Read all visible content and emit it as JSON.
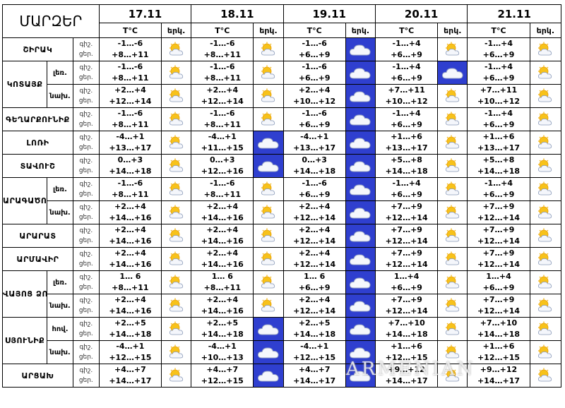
{
  "header": {
    "title": "ՄԱՐԶԵՐ",
    "dates": [
      "17.11",
      "18.11",
      "19.11",
      "20.11",
      "21.11"
    ],
    "temp_label": "T°C",
    "sky_label": "երկ."
  },
  "rows": [
    {
      "region": "ՇԻՐԱԿ",
      "zone": "",
      "lbl": [
        "գիշ.",
        "ցեր."
      ],
      "days": [
        {
          "t": [
            "-1…-6",
            "+8…+11"
          ],
          "sky": "sun-cloud"
        },
        {
          "t": [
            "-1…-6",
            "+8…+11"
          ],
          "sky": "sun-cloud"
        },
        {
          "t": [
            "-1…-6",
            "+6…+9"
          ],
          "sky": "cloud"
        },
        {
          "t": [
            "-1…+4",
            "+6…+9"
          ],
          "sky": "sun-cloud"
        },
        {
          "t": [
            "-1…+4",
            "+6…+9"
          ],
          "sky": "sun-cloud"
        }
      ]
    },
    {
      "region": "ԿՈՏԱՅՔ",
      "zone": "լեռ.",
      "lbl": [
        "գիշ.",
        "ցեր."
      ],
      "days": [
        {
          "t": [
            "-1…-6",
            "+8…+11"
          ],
          "sky": "sun-cloud"
        },
        {
          "t": [
            "-1…-6",
            "+8…+11"
          ],
          "sky": "sun-cloud"
        },
        {
          "t": [
            "-1…-6",
            "+6…+9"
          ],
          "sky": "cloud"
        },
        {
          "t": [
            "-1…+4",
            "+6…+9"
          ],
          "sky": "cloud"
        },
        {
          "t": [
            "-1…+4",
            "+6…+9"
          ],
          "sky": "sun-cloud"
        }
      ]
    },
    {
      "region": "",
      "zone": "նախ.",
      "lbl": [
        "գիշ.",
        "ցեր."
      ],
      "days": [
        {
          "t": [
            "+2…+4",
            "+12…+14"
          ],
          "sky": "sun-cloud"
        },
        {
          "t": [
            "+2…+4",
            "+12…+14"
          ],
          "sky": "sun-cloud"
        },
        {
          "t": [
            "+2…+4",
            "+10…+12"
          ],
          "sky": "cloud"
        },
        {
          "t": [
            "+7…+11",
            "+10…+12"
          ],
          "sky": "sun-cloud"
        },
        {
          "t": [
            "+7…+11",
            "+10…+12"
          ],
          "sky": "sun-cloud"
        }
      ]
    },
    {
      "region": "ԳԵՂԱՐՔՈՒՆԻՔ",
      "zone": "",
      "lbl": [
        "գիշ.",
        "ցեր."
      ],
      "days": [
        {
          "t": [
            "-1…-6",
            "+8…+11"
          ],
          "sky": "sun-cloud"
        },
        {
          "t": [
            "-1…-6",
            "+8…+11"
          ],
          "sky": "sun-cloud"
        },
        {
          "t": [
            "-1…-6",
            "+6…+9"
          ],
          "sky": "cloud"
        },
        {
          "t": [
            "-1…+4",
            "+6…+9"
          ],
          "sky": "sun-cloud"
        },
        {
          "t": [
            "-1…+4",
            "+6…+9"
          ],
          "sky": "sun-cloud"
        }
      ]
    },
    {
      "region": "ԼՈՌԻ",
      "zone": "",
      "lbl": [
        "գիշ.",
        "ցեր."
      ],
      "days": [
        {
          "t": [
            "-4…+1",
            "+13…+17"
          ],
          "sky": "sun-cloud"
        },
        {
          "t": [
            "-4…+1",
            "+11…+15"
          ],
          "sky": "cloud"
        },
        {
          "t": [
            "-4…+1",
            "+13…+17"
          ],
          "sky": "cloud"
        },
        {
          "t": [
            "+1…+6",
            "+13…+17"
          ],
          "sky": "sun-cloud"
        },
        {
          "t": [
            "+1…+6",
            "+13…+17"
          ],
          "sky": "sun-cloud"
        }
      ]
    },
    {
      "region": "ՏԱՎՈՒՇ",
      "zone": "",
      "lbl": [
        "գիշ.",
        "ցեր."
      ],
      "days": [
        {
          "t": [
            "0…+3",
            "+14…+18"
          ],
          "sky": "sun-cloud"
        },
        {
          "t": [
            "0…+3",
            "+12…+16"
          ],
          "sky": "cloud"
        },
        {
          "t": [
            "0…+3",
            "+14…+18"
          ],
          "sky": "cloud"
        },
        {
          "t": [
            "+5…+8",
            "+14…+18"
          ],
          "sky": "sun-cloud"
        },
        {
          "t": [
            "+5…+8",
            "+14…+18"
          ],
          "sky": "sun-cloud"
        }
      ]
    },
    {
      "region": "ԱՐԱԳԱԾՈՏՆ",
      "zone": "լեռ.",
      "lbl": [
        "գիշ.",
        "ցեր."
      ],
      "days": [
        {
          "t": [
            "-1…-6",
            "+8…+11"
          ],
          "sky": "sun-cloud"
        },
        {
          "t": [
            "-1…-6",
            "+8…+11"
          ],
          "sky": "sun-cloud"
        },
        {
          "t": [
            "-1…-6",
            "+6…+9"
          ],
          "sky": "cloud"
        },
        {
          "t": [
            "-1…+4",
            "+6…+9"
          ],
          "sky": "sun-cloud"
        },
        {
          "t": [
            "-1…+4",
            "+6…+9"
          ],
          "sky": "sun-cloud"
        }
      ]
    },
    {
      "region": "",
      "zone": "նախ.",
      "lbl": [
        "գիշ.",
        "ցեր."
      ],
      "days": [
        {
          "t": [
            "+2…+4",
            "+14…+16"
          ],
          "sky": "sun-cloud"
        },
        {
          "t": [
            "+2…+4",
            "+14…+16"
          ],
          "sky": "sun-cloud"
        },
        {
          "t": [
            "+2…+4",
            "+12…+14"
          ],
          "sky": "cloud"
        },
        {
          "t": [
            "+7…+9",
            "+12…+14"
          ],
          "sky": "sun-cloud"
        },
        {
          "t": [
            "+7…+9",
            "+12…+14"
          ],
          "sky": "sun-cloud"
        }
      ]
    },
    {
      "region": "ԱՐԱՐԱՏ",
      "zone": "",
      "lbl": [
        "գիշ.",
        "ցեր."
      ],
      "days": [
        {
          "t": [
            "+2…+4",
            "+14…+16"
          ],
          "sky": "sun-cloud"
        },
        {
          "t": [
            "+2…+4",
            "+14…+16"
          ],
          "sky": "sun-cloud"
        },
        {
          "t": [
            "+2…+4",
            "+12…+14"
          ],
          "sky": "cloud"
        },
        {
          "t": [
            "+7…+9",
            "+12…+14"
          ],
          "sky": "sun-cloud"
        },
        {
          "t": [
            "+7…+9",
            "+12…+14"
          ],
          "sky": "sun-cloud"
        }
      ]
    },
    {
      "region": "ԱՐՄԱՎԻՐ",
      "zone": "",
      "lbl": [
        "գիշ.",
        "ցեր."
      ],
      "days": [
        {
          "t": [
            "+2…+4",
            "+14…+16"
          ],
          "sky": "sun-cloud"
        },
        {
          "t": [
            "+2…+4",
            "+14…+16"
          ],
          "sky": "sun-cloud"
        },
        {
          "t": [
            "+2…+4",
            "+12…+14"
          ],
          "sky": "cloud"
        },
        {
          "t": [
            "+7…+9",
            "+12…+14"
          ],
          "sky": "sun-cloud"
        },
        {
          "t": [
            "+7…+9",
            "+12…+14"
          ],
          "sky": "sun-cloud"
        }
      ]
    },
    {
      "region": "ՎԱՅՈՑ ՁՈՐ",
      "zone": "լեռ.",
      "lbl": [
        "գիշ.",
        "ցեր."
      ],
      "days": [
        {
          "t": [
            "1… 6",
            "+8…+11"
          ],
          "sky": "sun-cloud"
        },
        {
          "t": [
            "1… 6",
            "+8…+11"
          ],
          "sky": "sun-cloud"
        },
        {
          "t": [
            "1… 6",
            "+6…+9"
          ],
          "sky": "cloud"
        },
        {
          "t": [
            "1…+4",
            "+6…+9"
          ],
          "sky": "sun-cloud"
        },
        {
          "t": [
            "1…+4",
            "+6…+9"
          ],
          "sky": "sun-cloud"
        }
      ]
    },
    {
      "region": "",
      "zone": "նախ.",
      "lbl": [
        "գիշ.",
        "ցեր."
      ],
      "days": [
        {
          "t": [
            "+2…+4",
            "+14…+16"
          ],
          "sky": "sun-cloud"
        },
        {
          "t": [
            "+2…+4",
            "+14…+16"
          ],
          "sky": "sun-cloud"
        },
        {
          "t": [
            "+2…+4",
            "+12…+14"
          ],
          "sky": "cloud"
        },
        {
          "t": [
            "+7…+9",
            "+12…+14"
          ],
          "sky": "sun-cloud"
        },
        {
          "t": [
            "+7…+9",
            "+12…+14"
          ],
          "sky": "sun-cloud"
        }
      ]
    },
    {
      "region": "ՍՅՈՒՆԻՔ",
      "zone": "հով.",
      "lbl": [
        "գիշ.",
        "ցեր."
      ],
      "days": [
        {
          "t": [
            "+2…+5",
            "+14…+18"
          ],
          "sky": "sun-cloud"
        },
        {
          "t": [
            "+2…+5",
            "+14…+18"
          ],
          "sky": "cloud"
        },
        {
          "t": [
            "+2…+5",
            "+14…+18"
          ],
          "sky": "cloud"
        },
        {
          "t": [
            "+7…+10",
            "+14…+18"
          ],
          "sky": "sun-cloud"
        },
        {
          "t": [
            "+7…+10",
            "+14…+18"
          ],
          "sky": "sun-cloud"
        }
      ]
    },
    {
      "region": "",
      "zone": "նախ.",
      "lbl": [
        "գիշ.",
        "ցեր."
      ],
      "days": [
        {
          "t": [
            "-4…+1",
            "+12…+15"
          ],
          "sky": "sun-cloud"
        },
        {
          "t": [
            "-4…+1",
            "+10…+13"
          ],
          "sky": "cloud"
        },
        {
          "t": [
            "-4…+1",
            "+12…+15"
          ],
          "sky": "cloud"
        },
        {
          "t": [
            "+1…+6",
            "+12…+15"
          ],
          "sky": "sun-cloud"
        },
        {
          "t": [
            "+1…+6",
            "+12…+15"
          ],
          "sky": "sun-cloud"
        }
      ]
    },
    {
      "region": "ԱՐՑԱԽ",
      "zone": "",
      "lbl": [
        "գիշ.",
        "ցեր."
      ],
      "days": [
        {
          "t": [
            "+4…+7",
            "+14…+17"
          ],
          "sky": "sun-cloud"
        },
        {
          "t": [
            "+4…+7",
            "+12…+15"
          ],
          "sky": "cloud"
        },
        {
          "t": [
            "+4…+7",
            "+14…+17"
          ],
          "sky": "cloud"
        },
        {
          "t": [
            "+9…+12",
            "+14…+17"
          ],
          "sky": "sun-cloud"
        },
        {
          "t": [
            "+9…+12",
            "+14…+17"
          ],
          "sky": "sun-cloud"
        }
      ]
    }
  ]
}
